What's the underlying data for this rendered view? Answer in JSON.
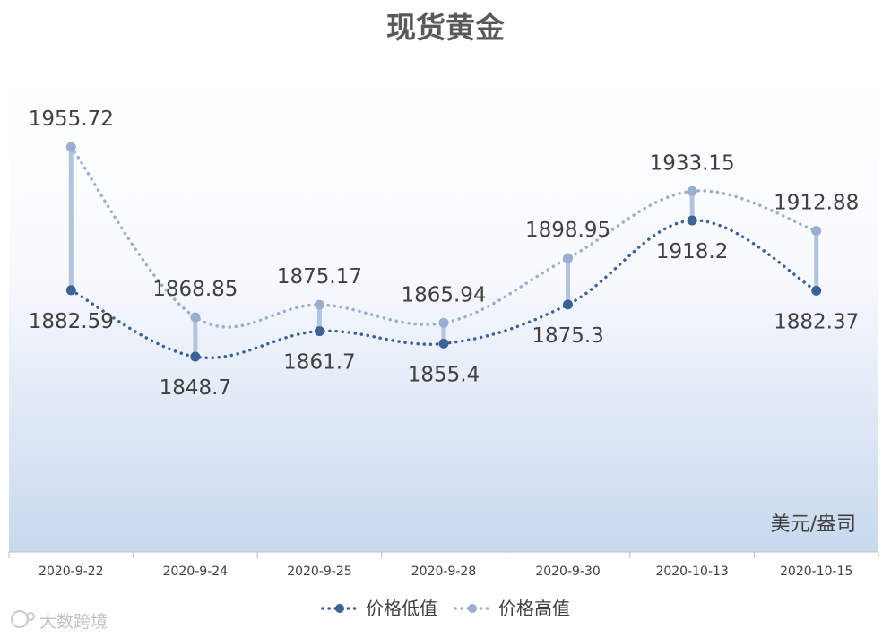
{
  "chart_data": {
    "type": "line",
    "title": "现货黄金",
    "unit_label": "美元/盎司",
    "categories": [
      "2020-9-22",
      "2020-9-24",
      "2020-9-25",
      "2020-9-28",
      "2020-9-30",
      "2020-10-13",
      "2020-10-15"
    ],
    "series": [
      {
        "name": "价格低值",
        "color": "#3d6396",
        "values": [
          1882.59,
          1848.7,
          1861.7,
          1855.4,
          1875.3,
          1918.2,
          1882.37
        ]
      },
      {
        "name": "价格高值",
        "color": "#99aed1",
        "values": [
          1955.72,
          1868.85,
          1875.17,
          1865.94,
          1898.95,
          1933.15,
          1912.88
        ]
      }
    ],
    "high_low_lines": true,
    "line_style": "dotted-smooth",
    "legend_position": "bottom",
    "grid": false
  },
  "watermark": "大数跨境"
}
